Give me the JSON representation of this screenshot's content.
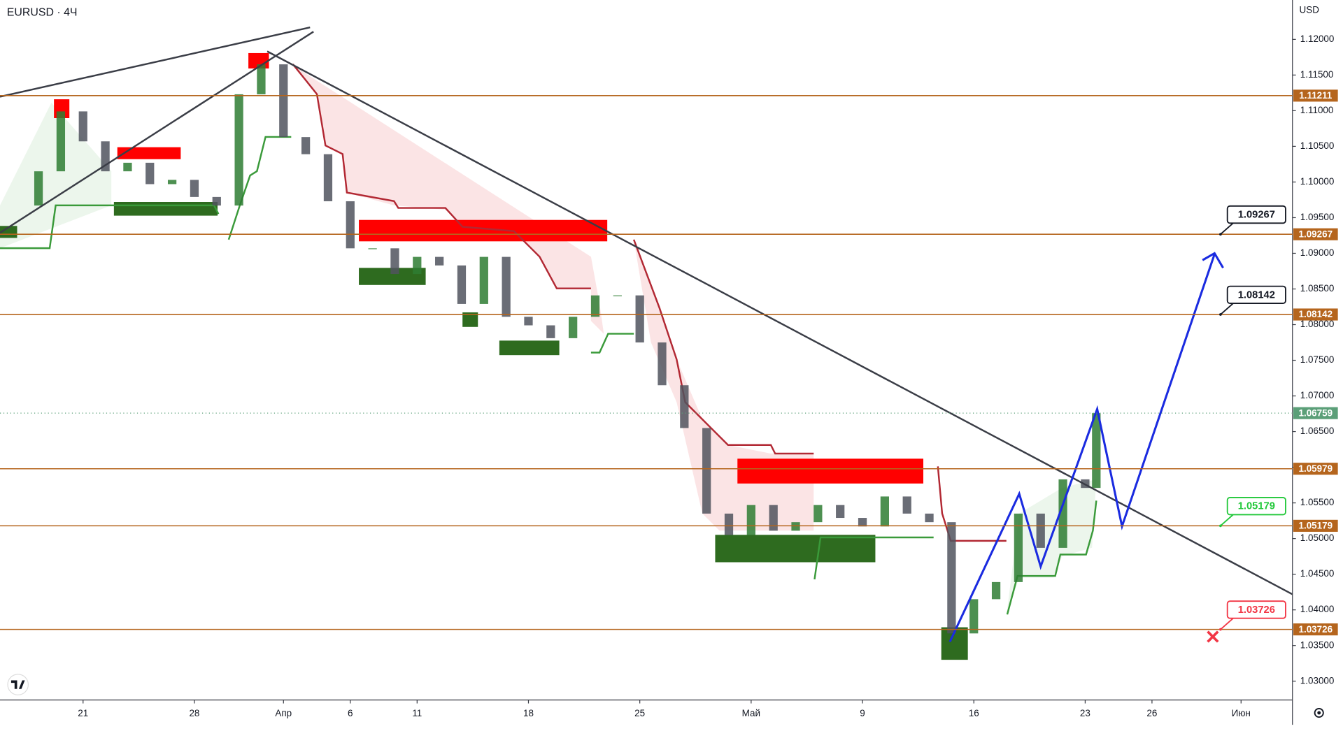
{
  "chart_data": {
    "type": "candlestick",
    "title": "EURUSD · 4Ч",
    "currency": "USD",
    "x": [
      -3,
      -2,
      -1,
      0,
      1,
      2,
      3,
      4,
      5,
      6,
      7,
      8,
      9,
      10,
      11,
      12,
      13,
      14,
      15,
      16,
      17,
      18,
      19,
      20,
      21,
      22,
      23,
      24,
      25,
      26,
      27,
      28,
      29,
      30,
      31,
      32,
      33,
      34,
      35,
      36,
      37,
      38,
      39,
      40,
      41,
      42,
      43,
      44,
      45,
      45.5
    ],
    "close": [
      1.0967,
      1.1015,
      1.1099,
      1.1057,
      1.1015,
      1.1027,
      1.0997,
      1.1003,
      1.0979,
      1.0967,
      1.1123,
      1.1165,
      1.1063,
      1.1039,
      1.0973,
      1.0907,
      1.0907,
      1.0871,
      1.0895,
      1.0883,
      1.0829,
      1.0895,
      1.0811,
      1.0799,
      1.0781,
      1.0811,
      1.0841,
      1.0841,
      1.0775,
      1.0715,
      1.0655,
      1.0535,
      1.0505,
      1.0547,
      1.0511,
      1.0523,
      1.0547,
      1.0529,
      1.0517,
      1.0559,
      1.0535,
      1.0523,
      1.0367,
      1.0415,
      1.0439,
      1.0535,
      1.0487,
      1.0583,
      1.0571,
      1.06759
    ],
    "up_color": "#2e7d32",
    "down_color": "#50535e",
    "xlim": [
      -3.73,
      54.27
    ],
    "ylim": [
      1.02736,
      1.12552
    ],
    "xticks": [
      {
        "value": 0,
        "label": "21"
      },
      {
        "value": 5,
        "label": "28"
      },
      {
        "value": 9,
        "label": "Апр"
      },
      {
        "value": 12,
        "label": "6"
      },
      {
        "value": 15,
        "label": "11"
      },
      {
        "value": 20,
        "label": "18"
      },
      {
        "value": 25,
        "label": "25"
      },
      {
        "value": 30,
        "label": "Май"
      },
      {
        "value": 35,
        "label": "9"
      },
      {
        "value": 40,
        "label": "16"
      },
      {
        "value": 45,
        "label": "23"
      },
      {
        "value": 48,
        "label": "26"
      },
      {
        "value": 52,
        "label": "Июн"
      }
    ],
    "yticks": [
      {
        "value": 1.03,
        "label": "1.03000"
      },
      {
        "value": 1.035,
        "label": "1.03500"
      },
      {
        "value": 1.04,
        "label": "1.04000"
      },
      {
        "value": 1.045,
        "label": "1.04500"
      },
      {
        "value": 1.05,
        "label": "1.05000"
      },
      {
        "value": 1.055,
        "label": "1.05500"
      },
      {
        "value": 1.06,
        "label": "1.06000"
      },
      {
        "value": 1.065,
        "label": "1.06500"
      },
      {
        "value": 1.07,
        "label": "1.07000"
      },
      {
        "value": 1.075,
        "label": "1.07500"
      },
      {
        "value": 1.08,
        "label": "1.08000"
      },
      {
        "value": 1.085,
        "label": "1.08500"
      },
      {
        "value": 1.09,
        "label": "1.09000"
      },
      {
        "value": 1.095,
        "label": "1.09500"
      },
      {
        "value": 1.1,
        "label": "1.10000"
      },
      {
        "value": 1.105,
        "label": "1.10500"
      },
      {
        "value": 1.11,
        "label": "1.11000"
      },
      {
        "value": 1.115,
        "label": "1.11500"
      },
      {
        "value": 1.12,
        "label": "1.12000"
      }
    ],
    "levels": [
      1.11211,
      1.09267,
      1.08142,
      1.05979,
      1.05179,
      1.03726
    ],
    "level_color": "#b5651d",
    "current_price": 1.06759,
    "current_color": "#5b9f78",
    "callouts": [
      {
        "value": 1.09267,
        "color": "#131722"
      },
      {
        "value": 1.08142,
        "color": "#131722"
      },
      {
        "value": 1.05179,
        "color": "#22c83a"
      },
      {
        "value": 1.03726,
        "color": "#f23645"
      }
    ]
  }
}
